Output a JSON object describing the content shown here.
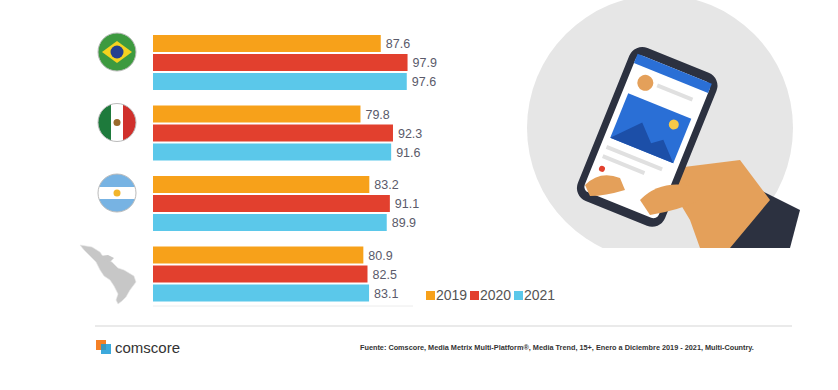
{
  "chart_data": {
    "type": "bar",
    "orientation": "horizontal",
    "categories": [
      null,
      null,
      null,
      null
    ],
    "series": [
      {
        "name": "2019",
        "color": "#f7a11a",
        "values": [
          87.6,
          79.8,
          83.2,
          80.9
        ]
      },
      {
        "name": "2020",
        "color": "#e2402e",
        "values": [
          97.9,
          92.3,
          91.1,
          82.5
        ]
      },
      {
        "name": "2021",
        "color": "#5bc8ea",
        "values": [
          97.6,
          91.6,
          89.9,
          83.1
        ]
      }
    ],
    "xlim": [
      0,
      100
    ],
    "tick_labels": false,
    "grid": false,
    "data_labels": true,
    "legend": "bottom",
    "annotations": [
      "Fuente: Comscore, Media Metrix Multi-Platform®, Media Trend, 15+, Enero a Diciembre 2019 - 2021, Multi-Country.",
      "comscore"
    ]
  }
}
